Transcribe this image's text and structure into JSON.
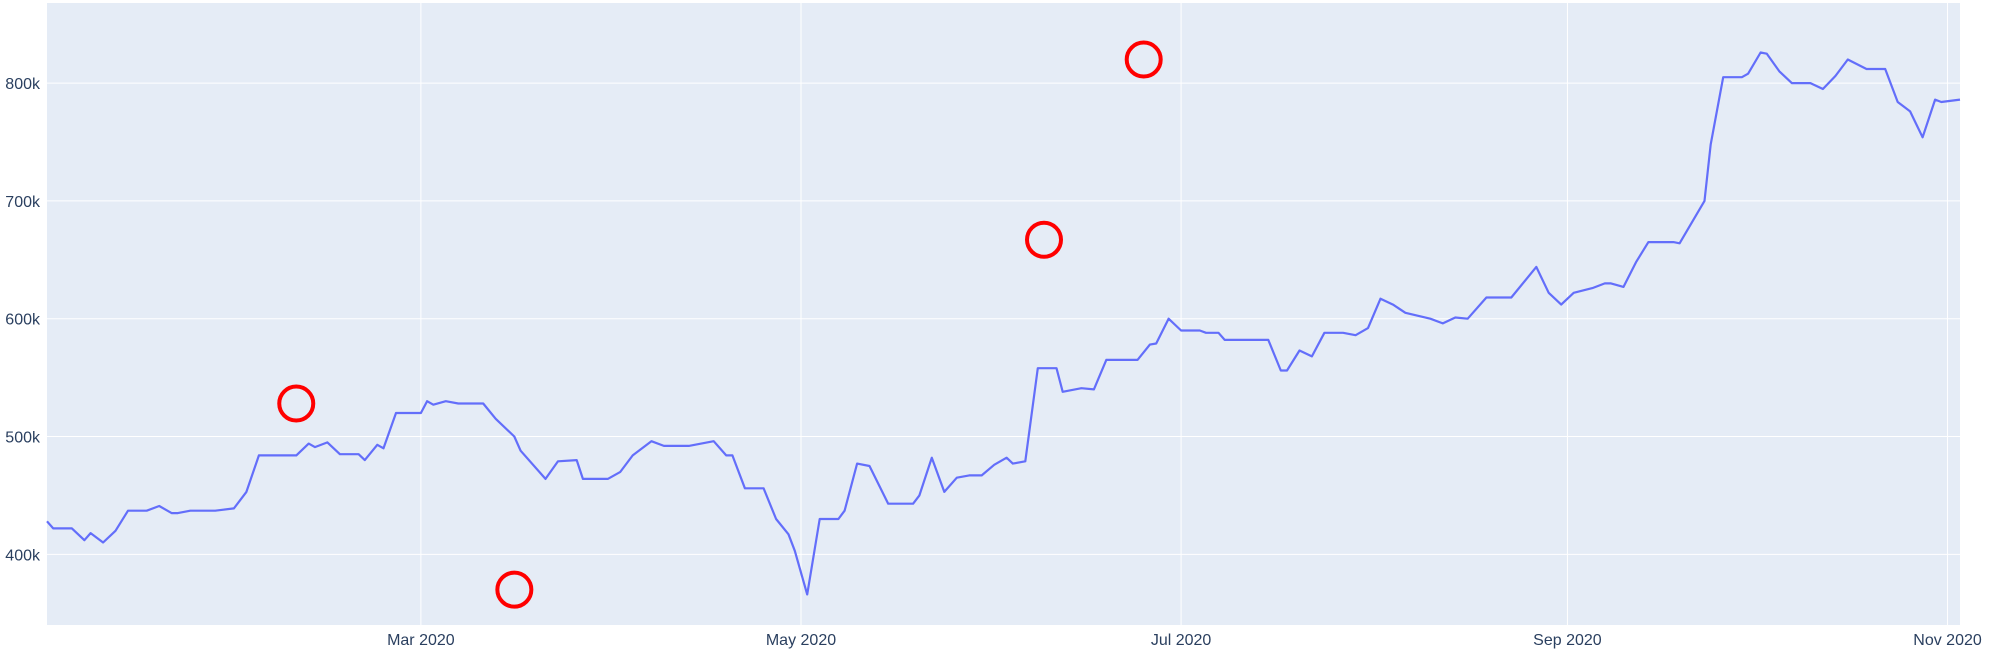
{
  "chart_data": {
    "type": "line",
    "title": "",
    "xlabel": "",
    "ylabel": "",
    "xlim": [
      "2020-01-01",
      "2020-11-03"
    ],
    "ylim": [
      340000,
      868000
    ],
    "grid": true,
    "legend": "none",
    "colors": {
      "background": "#e5ecf6",
      "grid": "#ffffff",
      "line": "#636efa",
      "marker": "#ff0000",
      "text": "#2a3f5f"
    },
    "y_ticks": [
      {
        "value": 400000,
        "label": "400k"
      },
      {
        "value": 500000,
        "label": "500k"
      },
      {
        "value": 600000,
        "label": "600k"
      },
      {
        "value": 700000,
        "label": "700k"
      },
      {
        "value": 800000,
        "label": "800k"
      }
    ],
    "x_ticks": [
      {
        "value": "2020-03-01",
        "label": "Mar 2020"
      },
      {
        "value": "2020-05-01",
        "label": "May 2020"
      },
      {
        "value": "2020-07-01",
        "label": "Jul 2020"
      },
      {
        "value": "2020-09-01",
        "label": "Sep 2020"
      },
      {
        "value": "2020-11-01",
        "label": "Nov 2020"
      }
    ],
    "series": [
      {
        "points": [
          [
            "2020-01-01",
            428000
          ],
          [
            "2020-01-02",
            422000
          ],
          [
            "2020-01-04",
            422000
          ],
          [
            "2020-01-05",
            422000
          ],
          [
            "2020-01-07",
            412000
          ],
          [
            "2020-01-08",
            418000
          ],
          [
            "2020-01-10",
            410000
          ],
          [
            "2020-01-12",
            420000
          ],
          [
            "2020-01-14",
            437000
          ],
          [
            "2020-01-17",
            437000
          ],
          [
            "2020-01-19",
            441000
          ],
          [
            "2020-01-21",
            435000
          ],
          [
            "2020-01-22",
            435000
          ],
          [
            "2020-01-24",
            437000
          ],
          [
            "2020-01-28",
            437000
          ],
          [
            "2020-01-31",
            439000
          ],
          [
            "2020-02-02",
            453000
          ],
          [
            "2020-02-04",
            484000
          ],
          [
            "2020-02-07",
            484000
          ],
          [
            "2020-02-10",
            484000
          ],
          [
            "2020-02-12",
            494000
          ],
          [
            "2020-02-13",
            491000
          ],
          [
            "2020-02-15",
            495000
          ],
          [
            "2020-02-17",
            485000
          ],
          [
            "2020-02-20",
            485000
          ],
          [
            "2020-02-21",
            480000
          ],
          [
            "2020-02-23",
            493000
          ],
          [
            "2020-02-24",
            490000
          ],
          [
            "2020-02-26",
            520000
          ],
          [
            "2020-03-01",
            520000
          ],
          [
            "2020-03-02",
            530000
          ],
          [
            "2020-03-03",
            527000
          ],
          [
            "2020-03-05",
            530000
          ],
          [
            "2020-03-07",
            528000
          ],
          [
            "2020-03-10",
            528000
          ],
          [
            "2020-03-11",
            528000
          ],
          [
            "2020-03-13",
            515000
          ],
          [
            "2020-03-16",
            500000
          ],
          [
            "2020-03-17",
            488000
          ],
          [
            "2020-03-21",
            464000
          ],
          [
            "2020-03-23",
            479000
          ],
          [
            "2020-03-26",
            480000
          ],
          [
            "2020-03-27",
            464000
          ],
          [
            "2020-03-31",
            464000
          ],
          [
            "2020-04-02",
            470000
          ],
          [
            "2020-04-04",
            484000
          ],
          [
            "2020-04-07",
            496000
          ],
          [
            "2020-04-09",
            492000
          ],
          [
            "2020-04-10",
            492000
          ],
          [
            "2020-04-13",
            492000
          ],
          [
            "2020-04-17",
            496000
          ],
          [
            "2020-04-19",
            484000
          ],
          [
            "2020-04-20",
            484000
          ],
          [
            "2020-04-22",
            456000
          ],
          [
            "2020-04-25",
            456000
          ],
          [
            "2020-04-27",
            430000
          ],
          [
            "2020-04-29",
            417000
          ],
          [
            "2020-04-30",
            403000
          ],
          [
            "2020-05-02",
            366000
          ],
          [
            "2020-05-04",
            430000
          ],
          [
            "2020-05-07",
            430000
          ],
          [
            "2020-05-08",
            437000
          ],
          [
            "2020-05-10",
            477000
          ],
          [
            "2020-05-12",
            475000
          ],
          [
            "2020-05-15",
            443000
          ],
          [
            "2020-05-19",
            443000
          ],
          [
            "2020-05-20",
            450000
          ],
          [
            "2020-05-22",
            482000
          ],
          [
            "2020-05-24",
            453000
          ],
          [
            "2020-05-26",
            465000
          ],
          [
            "2020-05-28",
            467000
          ],
          [
            "2020-05-30",
            467000
          ],
          [
            "2020-06-01",
            476000
          ],
          [
            "2020-06-03",
            482000
          ],
          [
            "2020-06-04",
            477000
          ],
          [
            "2020-06-06",
            479000
          ],
          [
            "2020-06-08",
            558000
          ],
          [
            "2020-06-11",
            558000
          ],
          [
            "2020-06-12",
            538000
          ],
          [
            "2020-06-15",
            541000
          ],
          [
            "2020-06-17",
            540000
          ],
          [
            "2020-06-19",
            565000
          ],
          [
            "2020-06-24",
            565000
          ],
          [
            "2020-06-26",
            578000
          ],
          [
            "2020-06-27",
            579000
          ],
          [
            "2020-06-29",
            600000
          ],
          [
            "2020-07-01",
            590000
          ],
          [
            "2020-07-04",
            590000
          ],
          [
            "2020-07-05",
            588000
          ],
          [
            "2020-07-07",
            588000
          ],
          [
            "2020-07-08",
            582000
          ],
          [
            "2020-07-15",
            582000
          ],
          [
            "2020-07-17",
            556000
          ],
          [
            "2020-07-18",
            556000
          ],
          [
            "2020-07-20",
            573000
          ],
          [
            "2020-07-22",
            568000
          ],
          [
            "2020-07-24",
            588000
          ],
          [
            "2020-07-27",
            588000
          ],
          [
            "2020-07-29",
            586000
          ],
          [
            "2020-07-31",
            592000
          ],
          [
            "2020-08-02",
            617000
          ],
          [
            "2020-08-04",
            612000
          ],
          [
            "2020-08-06",
            605000
          ],
          [
            "2020-08-10",
            600000
          ],
          [
            "2020-08-12",
            596000
          ],
          [
            "2020-08-14",
            601000
          ],
          [
            "2020-08-16",
            600000
          ],
          [
            "2020-08-19",
            618000
          ],
          [
            "2020-08-23",
            618000
          ],
          [
            "2020-08-27",
            644000
          ],
          [
            "2020-08-29",
            622000
          ],
          [
            "2020-08-31",
            612000
          ],
          [
            "2020-09-02",
            622000
          ],
          [
            "2020-09-05",
            626000
          ],
          [
            "2020-09-07",
            630000
          ],
          [
            "2020-09-08",
            630000
          ],
          [
            "2020-09-10",
            627000
          ],
          [
            "2020-09-12",
            648000
          ],
          [
            "2020-09-14",
            665000
          ],
          [
            "2020-09-18",
            665000
          ],
          [
            "2020-09-19",
            664000
          ],
          [
            "2020-09-23",
            700000
          ],
          [
            "2020-09-24",
            748000
          ],
          [
            "2020-09-26",
            805000
          ],
          [
            "2020-09-29",
            805000
          ],
          [
            "2020-09-30",
            808000
          ],
          [
            "2020-10-02",
            826000
          ],
          [
            "2020-10-03",
            825000
          ],
          [
            "2020-10-05",
            810000
          ],
          [
            "2020-10-07",
            800000
          ],
          [
            "2020-10-10",
            800000
          ],
          [
            "2020-10-12",
            795000
          ],
          [
            "2020-10-14",
            806000
          ],
          [
            "2020-10-16",
            820000
          ],
          [
            "2020-10-19",
            812000
          ],
          [
            "2020-10-22",
            812000
          ],
          [
            "2020-10-24",
            784000
          ],
          [
            "2020-10-26",
            776000
          ],
          [
            "2020-10-28",
            754000
          ],
          [
            "2020-10-30",
            786000
          ],
          [
            "2020-10-31",
            784000
          ],
          [
            "2020-11-03",
            786000
          ]
        ]
      }
    ],
    "highlighted_points": [
      {
        "x": "2020-02-10",
        "y": 528000
      },
      {
        "x": "2020-03-16",
        "y": 370000
      },
      {
        "x": "2020-06-09",
        "y": 667000
      },
      {
        "x": "2020-06-25",
        "y": 820000
      }
    ]
  }
}
